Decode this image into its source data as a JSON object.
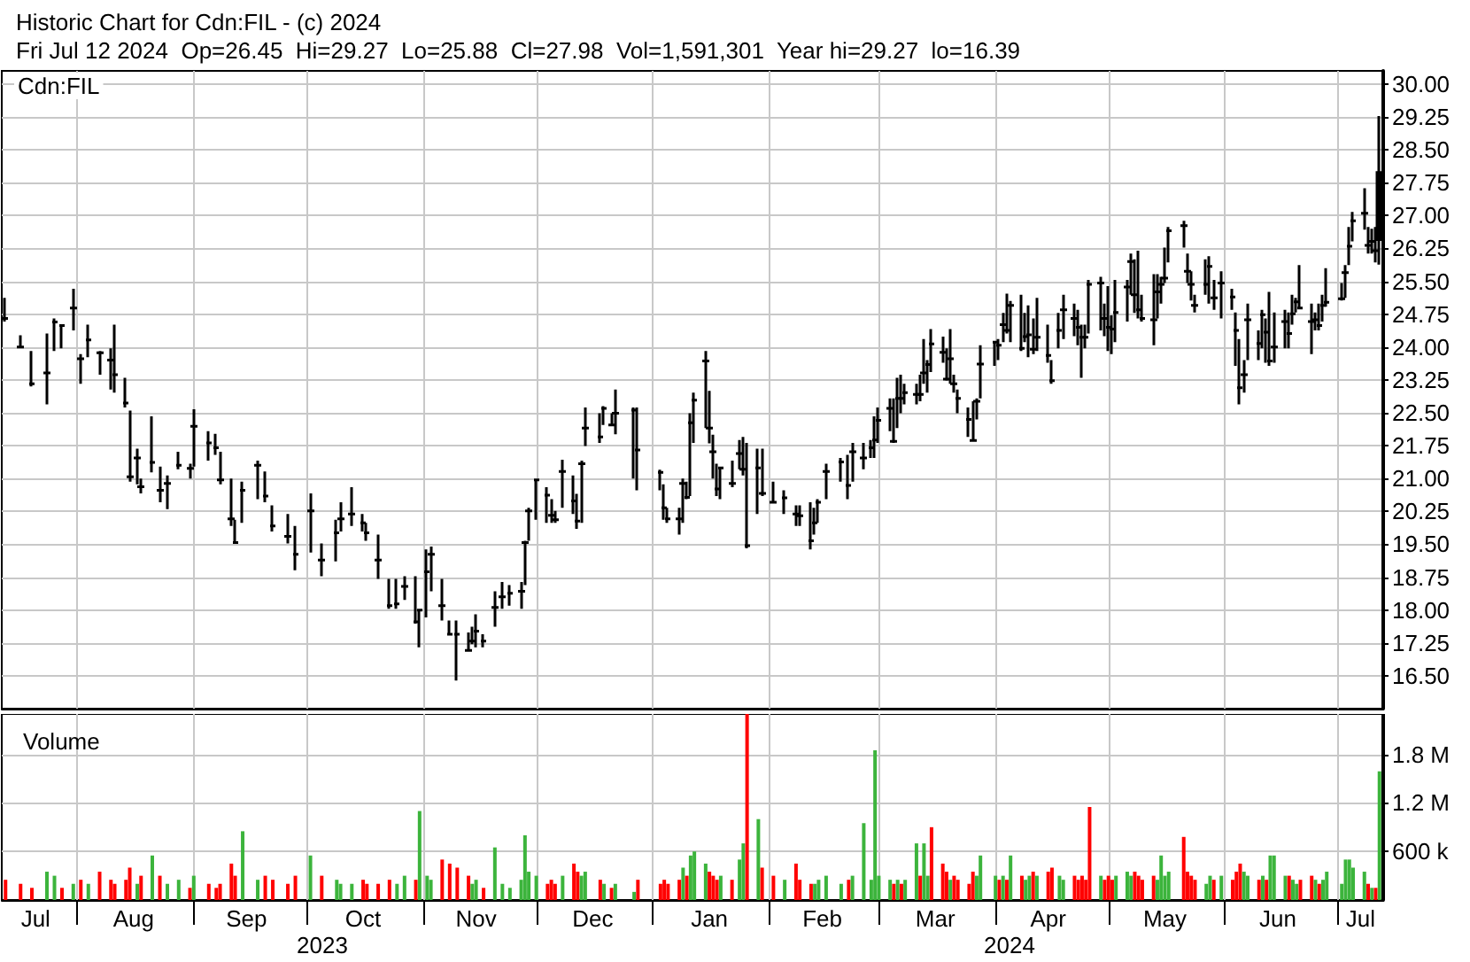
{
  "chart_data": [
    {
      "type": "candlestick",
      "title": "Historic Chart for Cdn:FIL - (c) 2024",
      "subtitle": "Fri Jul 12 2024  Op=26.45  Hi=29.27  Lo=25.88  Cl=27.98  Vol=1,591,301  Year hi=29.27  lo=16.39",
      "annotations": [
        "Cdn:FIL"
      ],
      "color": "#000000",
      "x": [
        "2023-07-13",
        "2023-07-17",
        "2023-07-20",
        "2023-07-24",
        "2023-07-26",
        "2023-07-28",
        "2023-07-31",
        "2023-08-02",
        "2023-08-04",
        "2023-08-07",
        "2023-08-10",
        "2023-08-11",
        "2023-08-14",
        "2023-08-15",
        "2023-08-17",
        "2023-08-18",
        "2023-08-21",
        "2023-08-23",
        "2023-08-25",
        "2023-08-28",
        "2023-08-31",
        "2023-09-01",
        "2023-09-05",
        "2023-09-07",
        "2023-09-08",
        "2023-09-11",
        "2023-09-12",
        "2023-09-14",
        "2023-09-18",
        "2023-09-20",
        "2023-09-22",
        "2023-09-26",
        "2023-09-28",
        "2023-10-02",
        "2023-10-05",
        "2023-10-09",
        "2023-10-10",
        "2023-10-13",
        "2023-10-16",
        "2023-10-17",
        "2023-10-20",
        "2023-10-23",
        "2023-10-25",
        "2023-10-27",
        "2023-10-30",
        "2023-10-31",
        "2023-11-02",
        "2023-11-03",
        "2023-11-06",
        "2023-11-08",
        "2023-11-10",
        "2023-11-13",
        "2023-11-14",
        "2023-11-15",
        "2023-11-17",
        "2023-11-20",
        "2023-11-22",
        "2023-11-24",
        "2023-11-27",
        "2023-11-28",
        "2023-11-29",
        "2023-12-01",
        "2023-12-04",
        "2023-12-05",
        "2023-12-06",
        "2023-12-08",
        "2023-12-11",
        "2023-12-12",
        "2023-12-13",
        "2023-12-14",
        "2023-12-18",
        "2023-12-19",
        "2023-12-21",
        "2023-12-22",
        "2023-12-27",
        "2023-12-28",
        "2024-01-03",
        "2024-01-04",
        "2024-01-05",
        "2024-01-08",
        "2024-01-09",
        "2024-01-10",
        "2024-01-11",
        "2024-01-12",
        "2024-01-15",
        "2024-01-16",
        "2024-01-17",
        "2024-01-18",
        "2024-01-19",
        "2024-01-22",
        "2024-01-24",
        "2024-01-25",
        "2024-01-26",
        "2024-01-29",
        "2024-01-30",
        "2024-02-02",
        "2024-02-05",
        "2024-02-08",
        "2024-02-09",
        "2024-02-12",
        "2024-02-13",
        "2024-02-14",
        "2024-02-16",
        "2024-02-20",
        "2024-02-22",
        "2024-02-23",
        "2024-02-26",
        "2024-02-28",
        "2024-02-29",
        "2024-03-01",
        "2024-03-04",
        "2024-03-05",
        "2024-03-06",
        "2024-03-07",
        "2024-03-08",
        "2024-03-11",
        "2024-03-12",
        "2024-03-13",
        "2024-03-14",
        "2024-03-15",
        "2024-03-18",
        "2024-03-19",
        "2024-03-20",
        "2024-03-21",
        "2024-03-22",
        "2024-03-25",
        "2024-03-26",
        "2024-03-27",
        "2024-03-28",
        "2024-04-01",
        "2024-04-02",
        "2024-04-03",
        "2024-04-04",
        "2024-04-05",
        "2024-04-08",
        "2024-04-09",
        "2024-04-10",
        "2024-04-11",
        "2024-04-12",
        "2024-04-15",
        "2024-04-16",
        "2024-04-18",
        "2024-04-19",
        "2024-04-22",
        "2024-04-23",
        "2024-04-24",
        "2024-04-25",
        "2024-04-26",
        "2024-04-29",
        "2024-04-30",
        "2024-05-01",
        "2024-05-02",
        "2024-05-03",
        "2024-05-06",
        "2024-05-07",
        "2024-05-08",
        "2024-05-09",
        "2024-05-10",
        "2024-05-13",
        "2024-05-14",
        "2024-05-15",
        "2024-05-16",
        "2024-05-17",
        "2024-05-21",
        "2024-05-22",
        "2024-05-23",
        "2024-05-24",
        "2024-05-27",
        "2024-05-28",
        "2024-05-29",
        "2024-05-31",
        "2024-06-03",
        "2024-06-04",
        "2024-06-05",
        "2024-06-06",
        "2024-06-07",
        "2024-06-10",
        "2024-06-11",
        "2024-06-12",
        "2024-06-13",
        "2024-06-14",
        "2024-06-17",
        "2024-06-18",
        "2024-06-19",
        "2024-06-20",
        "2024-06-21",
        "2024-06-24",
        "2024-06-25",
        "2024-06-26",
        "2024-06-27",
        "2024-06-28",
        "2024-07-02",
        "2024-07-03",
        "2024-07-04",
        "2024-07-05",
        "2024-07-08",
        "2024-07-09",
        "2024-07-10",
        "2024-07-11",
        "2024-07-12"
      ],
      "ohlc": [
        [
          24.65,
          25.12,
          24.58,
          24.65
        ],
        [
          24.0,
          24.27,
          23.97,
          24.0
        ],
        [
          23.16,
          23.91,
          23.1,
          23.16
        ],
        [
          23.41,
          24.31,
          22.69,
          23.41
        ],
        [
          24.57,
          24.65,
          23.91,
          24.57
        ],
        [
          24.49,
          24.51,
          23.97,
          24.49
        ],
        [
          24.89,
          25.33,
          24.38,
          24.89
        ],
        [
          23.73,
          23.84,
          23.16,
          23.73
        ],
        [
          24.16,
          24.51,
          23.77,
          24.16
        ],
        [
          23.87,
          23.91,
          23.37,
          23.87
        ],
        [
          23.7,
          23.97,
          23.03,
          23.7
        ],
        [
          23.37,
          24.51,
          22.96,
          23.37
        ],
        [
          22.72,
          23.3,
          22.62,
          22.72
        ],
        [
          21.04,
          22.55,
          20.93,
          21.04
        ],
        [
          21.47,
          21.68,
          20.87,
          21.47
        ],
        [
          20.81,
          21.0,
          20.66,
          20.81
        ],
        [
          21.37,
          22.42,
          21.14,
          21.37
        ],
        [
          20.73,
          21.27,
          20.46,
          20.73
        ],
        [
          20.89,
          21.07,
          20.3,
          20.89
        ],
        [
          21.3,
          21.61,
          21.21,
          21.3
        ],
        [
          21.23,
          21.34,
          21.0,
          21.23
        ],
        [
          22.19,
          22.58,
          21.27,
          22.19
        ],
        [
          21.81,
          22.08,
          21.41,
          21.81
        ],
        [
          21.7,
          22.02,
          21.54,
          21.7
        ],
        [
          20.97,
          21.61,
          20.87,
          20.97
        ],
        [
          20.08,
          21.0,
          19.92,
          20.08
        ],
        [
          19.54,
          20.06,
          19.52,
          19.54
        ],
        [
          20.73,
          20.93,
          19.99,
          20.73
        ],
        [
          21.3,
          21.41,
          20.53,
          21.3
        ],
        [
          20.6,
          21.16,
          20.46,
          20.6
        ],
        [
          19.92,
          20.39,
          19.79,
          19.92
        ],
        [
          19.68,
          20.19,
          19.52,
          19.68
        ],
        [
          19.27,
          19.92,
          18.91,
          19.27
        ],
        [
          20.26,
          20.66,
          19.31,
          20.26
        ],
        [
          19.14,
          19.52,
          18.77,
          19.14
        ],
        [
          19.76,
          20.06,
          19.11,
          19.76
        ],
        [
          20.08,
          20.46,
          19.79,
          20.08
        ],
        [
          20.19,
          20.8,
          19.92,
          20.19
        ],
        [
          19.99,
          20.19,
          19.79,
          19.99
        ],
        [
          19.76,
          19.99,
          19.58,
          19.76
        ],
        [
          19.14,
          19.72,
          18.71,
          19.14
        ],
        [
          18.1,
          18.71,
          18.03,
          18.1
        ],
        [
          18.14,
          18.71,
          18.03,
          18.14
        ],
        [
          18.54,
          18.77,
          18.23,
          18.54
        ],
        [
          17.73,
          18.77,
          17.69,
          17.73
        ],
        [
          18.0,
          18.03,
          17.15,
          18.0
        ],
        [
          18.87,
          19.38,
          17.83,
          18.87
        ],
        [
          19.27,
          19.45,
          18.43,
          19.27
        ],
        [
          18.1,
          18.71,
          17.76,
          18.1
        ],
        [
          17.45,
          17.76,
          17.42,
          17.45
        ],
        [
          17.45,
          17.76,
          16.39,
          17.45
        ],
        [
          17.08,
          17.49,
          17.08,
          17.08
        ],
        [
          17.29,
          17.62,
          17.22,
          17.29
        ],
        [
          17.52,
          17.9,
          17.15,
          17.52
        ],
        [
          17.29,
          17.45,
          17.15,
          17.29
        ],
        [
          18.06,
          18.43,
          17.62,
          18.06
        ],
        [
          18.3,
          18.64,
          18.03,
          18.3
        ],
        [
          18.38,
          18.57,
          18.1,
          18.38
        ],
        [
          18.43,
          18.64,
          18.03,
          18.43
        ],
        [
          19.54,
          19.58,
          18.57,
          19.54
        ],
        [
          20.26,
          20.33,
          19.58,
          20.26
        ],
        [
          20.97,
          20.97,
          20.06,
          20.97
        ],
        [
          20.62,
          20.8,
          19.99,
          20.62
        ],
        [
          20.16,
          20.53,
          19.99,
          20.16
        ],
        [
          20.06,
          20.26,
          19.99,
          20.06
        ],
        [
          21.16,
          21.43,
          20.33,
          21.16
        ],
        [
          20.49,
          21.07,
          20.19,
          20.49
        ],
        [
          20.03,
          20.65,
          19.85,
          20.03
        ],
        [
          21.34,
          21.41,
          19.99,
          21.34
        ],
        [
          22.15,
          22.62,
          21.74,
          22.15
        ],
        [
          21.95,
          22.49,
          21.81,
          21.95
        ],
        [
          22.6,
          22.65,
          22.22,
          22.6
        ],
        [
          22.22,
          22.49,
          22.22,
          22.22
        ],
        [
          22.49,
          23.03,
          22.01,
          22.49
        ],
        [
          22.56,
          22.62,
          21.0,
          22.56
        ],
        [
          21.65,
          22.62,
          20.73,
          21.65
        ],
        [
          21.14,
          21.2,
          20.73,
          21.14
        ],
        [
          20.33,
          20.87,
          20.06,
          20.33
        ],
        [
          20.08,
          20.33,
          19.99,
          20.08
        ],
        [
          20.08,
          20.33,
          19.72,
          20.08
        ],
        [
          20.89,
          21.0,
          19.99,
          20.89
        ],
        [
          20.57,
          20.93,
          20.53,
          20.57
        ],
        [
          22.27,
          22.49,
          20.6,
          22.27
        ],
        [
          22.79,
          22.96,
          21.81,
          22.79
        ],
        [
          23.68,
          23.91,
          22.15,
          23.68
        ],
        [
          22.15,
          23.0,
          21.8,
          22.15
        ],
        [
          21.61,
          22.0,
          21.0,
          21.61
        ],
        [
          20.76,
          21.34,
          20.6,
          20.76
        ],
        [
          21.24,
          21.27,
          20.53,
          21.24
        ],
        [
          20.89,
          21.41,
          20.8,
          20.89
        ],
        [
          21.57,
          21.88,
          21.21,
          21.57
        ],
        [
          21.21,
          21.95,
          21.07,
          21.21
        ],
        [
          19.47,
          21.81,
          19.41,
          19.47
        ],
        [
          21.24,
          21.68,
          20.19,
          21.24
        ],
        [
          20.66,
          21.68,
          20.6,
          20.66
        ],
        [
          20.46,
          20.93,
          20.46,
          20.46
        ],
        [
          20.56,
          20.73,
          20.19,
          20.56
        ],
        [
          20.19,
          20.39,
          19.92,
          20.19
        ],
        [
          20.15,
          20.39,
          19.92,
          20.15
        ],
        [
          19.58,
          20.46,
          19.38,
          19.58
        ],
        [
          19.99,
          20.33,
          19.72,
          19.99
        ],
        [
          20.46,
          20.53,
          19.99,
          20.46
        ],
        [
          21.16,
          21.34,
          20.53,
          21.16
        ],
        [
          21.38,
          21.47,
          20.93,
          21.38
        ],
        [
          20.84,
          21.54,
          20.53,
          20.84
        ],
        [
          21.61,
          21.81,
          20.93,
          21.61
        ],
        [
          21.47,
          21.81,
          21.21,
          21.47
        ],
        [
          21.7,
          21.88,
          21.47,
          21.7
        ],
        [
          21.88,
          22.42,
          21.47,
          21.88
        ],
        [
          22.33,
          22.62,
          21.81,
          22.33
        ],
        [
          22.6,
          22.83,
          22.08,
          22.6
        ],
        [
          21.85,
          22.83,
          21.81,
          21.85
        ],
        [
          22.83,
          23.3,
          22.15,
          22.83
        ],
        [
          22.83,
          23.37,
          22.49,
          22.83
        ],
        [
          22.96,
          23.16,
          22.69,
          22.96
        ],
        [
          22.92,
          23.16,
          22.69,
          22.92
        ],
        [
          22.92,
          23.37,
          22.76,
          22.92
        ],
        [
          23.41,
          24.18,
          23.16,
          23.41
        ],
        [
          23.6,
          23.7,
          22.96,
          23.6
        ],
        [
          24.07,
          24.41,
          23.43,
          24.07
        ],
        [
          23.88,
          24.24,
          23.64,
          23.88
        ],
        [
          23.27,
          23.97,
          23.23,
          23.27
        ],
        [
          23.73,
          24.41,
          23.16,
          23.73
        ],
        [
          23.16,
          23.37,
          22.96,
          23.16
        ],
        [
          22.83,
          23.03,
          22.49,
          22.83
        ],
        [
          22.35,
          22.62,
          21.95,
          22.35
        ],
        [
          21.87,
          22.76,
          21.84,
          21.87
        ],
        [
          22.76,
          22.83,
          22.35,
          22.76
        ],
        [
          23.61,
          24.04,
          22.83,
          23.61
        ],
        [
          24.11,
          24.14,
          23.57,
          24.11
        ],
        [
          24.04,
          24.18,
          23.7,
          24.04
        ],
        [
          24.51,
          24.78,
          24.11,
          24.51
        ],
        [
          24.38,
          25.22,
          24.31,
          24.38
        ],
        [
          24.95,
          25.05,
          24.11,
          24.95
        ],
        [
          23.97,
          25.19,
          23.91,
          23.97
        ],
        [
          24.24,
          24.78,
          24.11,
          24.24
        ],
        [
          24.28,
          24.95,
          23.77,
          24.28
        ],
        [
          23.95,
          24.65,
          23.84,
          23.95
        ],
        [
          24.22,
          25.12,
          23.91,
          24.22
        ],
        [
          23.81,
          24.51,
          23.64,
          23.81
        ],
        [
          23.23,
          23.7,
          23.16,
          23.23
        ],
        [
          24.38,
          24.78,
          23.97,
          24.38
        ],
        [
          24.85,
          25.19,
          24.18,
          24.85
        ],
        [
          24.65,
          24.99,
          24.25,
          24.65
        ],
        [
          24.45,
          24.85,
          24.04,
          24.45
        ],
        [
          24.22,
          24.51,
          23.3,
          24.22
        ],
        [
          24.22,
          24.51,
          23.97,
          24.22
        ],
        [
          25.43,
          25.53,
          24.31,
          25.43
        ],
        [
          25.46,
          25.6,
          24.38,
          25.46
        ],
        [
          24.65,
          24.99,
          24.25,
          24.65
        ],
        [
          24.45,
          25.39,
          23.91,
          24.45
        ],
        [
          24.41,
          24.72,
          23.84,
          24.41
        ],
        [
          24.79,
          25.53,
          24.11,
          24.79
        ],
        [
          25.37,
          25.53,
          24.58,
          25.37
        ],
        [
          25.95,
          26.13,
          25.19,
          25.95
        ],
        [
          25.19,
          26.0,
          24.78,
          25.19
        ],
        [
          24.85,
          26.2,
          24.65,
          24.85
        ],
        [
          24.65,
          25.19,
          24.58,
          24.65
        ],
        [
          24.62,
          25.66,
          24.04,
          24.62
        ],
        [
          25.26,
          25.66,
          24.65,
          25.26
        ],
        [
          25.43,
          25.6,
          24.99,
          25.43
        ],
        [
          25.57,
          26.27,
          25.46,
          25.57
        ],
        [
          26.65,
          26.74,
          25.93,
          26.65
        ],
        [
          26.77,
          26.88,
          26.27,
          26.77
        ],
        [
          25.73,
          26.13,
          25.46,
          25.73
        ],
        [
          25.43,
          25.73,
          25.06,
          25.43
        ],
        [
          24.95,
          25.19,
          24.79,
          24.95
        ],
        [
          25.43,
          26.0,
          25.19,
          25.43
        ],
        [
          25.84,
          26.07,
          24.99,
          25.84
        ],
        [
          25.12,
          25.53,
          24.85,
          25.12
        ],
        [
          25.46,
          25.73,
          24.65,
          25.46
        ],
        [
          25.14,
          25.33,
          24.85,
          25.14
        ],
        [
          24.38,
          24.79,
          23.57,
          24.38
        ],
        [
          23.07,
          24.18,
          22.69,
          23.07
        ],
        [
          23.37,
          23.7,
          22.96,
          23.37
        ],
        [
          24.62,
          24.99,
          23.7,
          24.62
        ],
        [
          24.08,
          24.38,
          23.7,
          24.08
        ],
        [
          24.74,
          24.85,
          23.97,
          24.74
        ],
        [
          24.34,
          24.65,
          23.64,
          24.34
        ],
        [
          23.68,
          25.26,
          23.57,
          23.68
        ],
        [
          24.0,
          24.79,
          23.64,
          24.0
        ],
        [
          24.58,
          24.85,
          23.97,
          24.58
        ],
        [
          24.31,
          24.79,
          23.97,
          24.31
        ],
        [
          24.76,
          25.19,
          24.51,
          24.76
        ],
        [
          25.03,
          25.12,
          24.79,
          25.03
        ],
        [
          24.89,
          25.87,
          24.89,
          24.89
        ],
        [
          24.58,
          24.99,
          23.84,
          24.58
        ],
        [
          24.62,
          24.79,
          24.38,
          24.62
        ],
        [
          24.49,
          24.99,
          24.38,
          24.49
        ],
        [
          24.95,
          25.19,
          24.58,
          24.95
        ],
        [
          25.02,
          25.8,
          24.92,
          25.02
        ],
        [
          25.1,
          25.46,
          25.06,
          25.1
        ],
        [
          25.7,
          25.87,
          25.12,
          25.7
        ],
        [
          26.3,
          26.74,
          25.87,
          26.3
        ],
        [
          26.88,
          27.08,
          26.41,
          26.88
        ],
        [
          27.05,
          27.62,
          26.68,
          27.05
        ],
        [
          26.32,
          26.74,
          26.13,
          26.32
        ],
        [
          26.41,
          26.7,
          26.13,
          26.41
        ],
        [
          26.2,
          26.74,
          25.93,
          26.2
        ],
        [
          26.45,
          29.27,
          25.88,
          27.98
        ]
      ],
      "xlim": [
        "2023-07-12",
        "2024-07-13"
      ],
      "xticks": [
        {
          "value": "2023-08-01",
          "label": null
        },
        {
          "value": "2023-09-01",
          "label": null
        },
        {
          "value": "2023-10-01",
          "label": null
        },
        {
          "value": "2023-11-01",
          "label": null
        },
        {
          "value": "2023-12-01",
          "label": null
        },
        {
          "value": "2024-01-01",
          "label": null
        },
        {
          "value": "2024-02-01",
          "label": null
        },
        {
          "value": "2024-03-01",
          "label": null
        },
        {
          "value": "2024-04-01",
          "label": null
        },
        {
          "value": "2024-05-01",
          "label": null
        },
        {
          "value": "2024-06-01",
          "label": null
        },
        {
          "value": "2024-07-01",
          "label": null
        }
      ],
      "ylim": [
        15.75,
        30.3
      ],
      "yticks": [
        {
          "value": 16.5,
          "label": "16.50"
        },
        {
          "value": 17.25,
          "label": "17.25"
        },
        {
          "value": 18,
          "label": "18.00"
        },
        {
          "value": 18.75,
          "label": "18.75"
        },
        {
          "value": 19.5,
          "label": "19.50"
        },
        {
          "value": 20.25,
          "label": "20.25"
        },
        {
          "value": 21,
          "label": "21.00"
        },
        {
          "value": 21.75,
          "label": "21.75"
        },
        {
          "value": 22.5,
          "label": "22.50"
        },
        {
          "value": 23.25,
          "label": "23.25"
        },
        {
          "value": 24,
          "label": "24.00"
        },
        {
          "value": 24.75,
          "label": "24.75"
        },
        {
          "value": 25.5,
          "label": "25.50"
        },
        {
          "value": 26.25,
          "label": "26.25"
        },
        {
          "value": 27,
          "label": "27.00"
        },
        {
          "value": 27.75,
          "label": "27.75"
        },
        {
          "value": 28.5,
          "label": "28.50"
        },
        {
          "value": 29.25,
          "label": "29.25"
        },
        {
          "value": 30,
          "label": "30.00"
        }
      ],
      "grid": true,
      "tick_labels": "y"
    },
    {
      "type": "bar",
      "title": "Volume",
      "x": [
        "2023-07-13",
        "2023-07-17",
        "2023-07-20",
        "2023-07-24",
        "2023-07-26",
        "2023-07-28",
        "2023-07-31",
        "2023-08-02",
        "2023-08-04",
        "2023-08-07",
        "2023-08-10",
        "2023-08-11",
        "2023-08-14",
        "2023-08-15",
        "2023-08-17",
        "2023-08-18",
        "2023-08-21",
        "2023-08-23",
        "2023-08-25",
        "2023-08-28",
        "2023-08-31",
        "2023-09-01",
        "2023-09-05",
        "2023-09-07",
        "2023-09-08",
        "2023-09-11",
        "2023-09-12",
        "2023-09-14",
        "2023-09-18",
        "2023-09-20",
        "2023-09-22",
        "2023-09-26",
        "2023-09-28",
        "2023-10-02",
        "2023-10-05",
        "2023-10-09",
        "2023-10-10",
        "2023-10-13",
        "2023-10-16",
        "2023-10-17",
        "2023-10-20",
        "2023-10-23",
        "2023-10-25",
        "2023-10-27",
        "2023-10-30",
        "2023-10-31",
        "2023-11-02",
        "2023-11-03",
        "2023-11-06",
        "2023-11-08",
        "2023-11-10",
        "2023-11-13",
        "2023-11-14",
        "2023-11-15",
        "2023-11-17",
        "2023-11-20",
        "2023-11-22",
        "2023-11-24",
        "2023-11-27",
        "2023-11-28",
        "2023-11-29",
        "2023-12-01",
        "2023-12-04",
        "2023-12-05",
        "2023-12-06",
        "2023-12-08",
        "2023-12-11",
        "2023-12-12",
        "2023-12-13",
        "2023-12-14",
        "2023-12-18",
        "2023-12-19",
        "2023-12-21",
        "2023-12-22",
        "2023-12-27",
        "2023-12-28",
        "2024-01-03",
        "2024-01-04",
        "2024-01-05",
        "2024-01-08",
        "2024-01-09",
        "2024-01-10",
        "2024-01-11",
        "2024-01-12",
        "2024-01-15",
        "2024-01-16",
        "2024-01-17",
        "2024-01-18",
        "2024-01-19",
        "2024-01-22",
        "2024-01-24",
        "2024-01-25",
        "2024-01-26",
        "2024-01-29",
        "2024-01-30",
        "2024-02-02",
        "2024-02-05",
        "2024-02-08",
        "2024-02-09",
        "2024-02-12",
        "2024-02-13",
        "2024-02-14",
        "2024-02-16",
        "2024-02-20",
        "2024-02-22",
        "2024-02-23",
        "2024-02-26",
        "2024-02-28",
        "2024-02-29",
        "2024-03-01",
        "2024-03-04",
        "2024-03-05",
        "2024-03-06",
        "2024-03-07",
        "2024-03-08",
        "2024-03-11",
        "2024-03-12",
        "2024-03-13",
        "2024-03-14",
        "2024-03-15",
        "2024-03-18",
        "2024-03-19",
        "2024-03-20",
        "2024-03-21",
        "2024-03-22",
        "2024-03-25",
        "2024-03-26",
        "2024-03-27",
        "2024-03-28",
        "2024-04-01",
        "2024-04-02",
        "2024-04-03",
        "2024-04-04",
        "2024-04-05",
        "2024-04-08",
        "2024-04-09",
        "2024-04-10",
        "2024-04-11",
        "2024-04-12",
        "2024-04-15",
        "2024-04-16",
        "2024-04-18",
        "2024-04-19",
        "2024-04-22",
        "2024-04-23",
        "2024-04-24",
        "2024-04-25",
        "2024-04-26",
        "2024-04-29",
        "2024-04-30",
        "2024-05-01",
        "2024-05-02",
        "2024-05-03",
        "2024-05-06",
        "2024-05-07",
        "2024-05-08",
        "2024-05-09",
        "2024-05-10",
        "2024-05-13",
        "2024-05-14",
        "2024-05-15",
        "2024-05-16",
        "2024-05-17",
        "2024-05-21",
        "2024-05-22",
        "2024-05-23",
        "2024-05-24",
        "2024-05-27",
        "2024-05-28",
        "2024-05-29",
        "2024-05-31",
        "2024-06-03",
        "2024-06-04",
        "2024-06-05",
        "2024-06-06",
        "2024-06-07",
        "2024-06-10",
        "2024-06-11",
        "2024-06-12",
        "2024-06-13",
        "2024-06-14",
        "2024-06-17",
        "2024-06-18",
        "2024-06-19",
        "2024-06-20",
        "2024-06-21",
        "2024-06-24",
        "2024-06-25",
        "2024-06-26",
        "2024-06-27",
        "2024-06-28",
        "2024-07-02",
        "2024-07-03",
        "2024-07-04",
        "2024-07-05",
        "2024-07-08",
        "2024-07-09",
        "2024-07-10",
        "2024-07-11",
        "2024-07-12"
      ],
      "values": [
        250000,
        200000,
        150000,
        350000,
        300000,
        150000,
        200000,
        250000,
        200000,
        350000,
        250000,
        200000,
        250000,
        400000,
        200000,
        300000,
        550000,
        300000,
        200000,
        250000,
        150000,
        300000,
        200000,
        150000,
        200000,
        450000,
        300000,
        850000,
        250000,
        300000,
        250000,
        200000,
        300000,
        550000,
        300000,
        250000,
        200000,
        200000,
        250000,
        200000,
        200000,
        250000,
        200000,
        300000,
        250000,
        1100000,
        300000,
        250000,
        500000,
        450000,
        400000,
        300000,
        200000,
        250000,
        150000,
        650000,
        200000,
        150000,
        250000,
        800000,
        350000,
        300000,
        200000,
        250000,
        200000,
        300000,
        450000,
        350000,
        300000,
        350000,
        250000,
        200000,
        150000,
        200000,
        100000,
        250000,
        200000,
        250000,
        200000,
        250000,
        400000,
        300000,
        550000,
        600000,
        450000,
        350000,
        300000,
        250000,
        300000,
        250000,
        500000,
        700000,
        2300000,
        1000000,
        400000,
        300000,
        250000,
        450000,
        250000,
        200000,
        200000,
        250000,
        300000,
        200000,
        250000,
        300000,
        950000,
        250000,
        1850000,
        300000,
        250000,
        200000,
        250000,
        200000,
        250000,
        700000,
        300000,
        700000,
        300000,
        900000,
        450000,
        350000,
        250000,
        300000,
        250000,
        200000,
        350000,
        300000,
        550000,
        300000,
        250000,
        300000,
        250000,
        550000,
        300000,
        250000,
        300000,
        350000,
        300000,
        350000,
        400000,
        300000,
        250000,
        300000,
        250000,
        300000,
        250000,
        1150000,
        300000,
        250000,
        300000,
        250000,
        300000,
        350000,
        300000,
        350000,
        300000,
        250000,
        300000,
        250000,
        550000,
        300000,
        350000,
        780000,
        350000,
        300000,
        250000,
        200000,
        300000,
        250000,
        300000,
        250000,
        350000,
        450000,
        350000,
        300000,
        250000,
        300000,
        250000,
        550000,
        550000,
        300000,
        300000,
        250000,
        200000,
        250000,
        300000,
        250000,
        200000,
        250000,
        350000,
        200000,
        500000,
        500000,
        400000,
        350000,
        200000,
        150000,
        150000,
        1591301
      ],
      "colors": [
        "#ff0000",
        "#ff0000",
        "#ff0000",
        "#3cb43c",
        "#3cb43c",
        "#ff0000",
        "#3cb43c",
        "#ff0000",
        "#3cb43c",
        "#ff0000",
        "#ff0000",
        "#ff0000",
        "#ff0000",
        "#ff0000",
        "#3cb43c",
        "#ff0000",
        "#3cb43c",
        "#ff0000",
        "#3cb43c",
        "#3cb43c",
        "#ff0000",
        "#3cb43c",
        "#ff0000",
        "#ff0000",
        "#ff0000",
        "#ff0000",
        "#ff0000",
        "#3cb43c",
        "#3cb43c",
        "#ff0000",
        "#ff0000",
        "#ff0000",
        "#ff0000",
        "#3cb43c",
        "#ff0000",
        "#3cb43c",
        "#3cb43c",
        "#3cb43c",
        "#ff0000",
        "#ff0000",
        "#ff0000",
        "#ff0000",
        "#3cb43c",
        "#3cb43c",
        "#ff0000",
        "#3cb43c",
        "#3cb43c",
        "#3cb43c",
        "#ff0000",
        "#ff0000",
        "#ff0000",
        "#ff0000",
        "#3cb43c",
        "#3cb43c",
        "#ff0000",
        "#3cb43c",
        "#3cb43c",
        "#3cb43c",
        "#3cb43c",
        "#3cb43c",
        "#3cb43c",
        "#3cb43c",
        "#ff0000",
        "#ff0000",
        "#ff0000",
        "#3cb43c",
        "#ff0000",
        "#ff0000",
        "#3cb43c",
        "#3cb43c",
        "#ff0000",
        "#3cb43c",
        "#ff0000",
        "#3cb43c",
        "#3cb43c",
        "#ff0000",
        "#ff0000",
        "#ff0000",
        "#ff0000",
        "#ff0000",
        "#3cb43c",
        "#ff0000",
        "#3cb43c",
        "#3cb43c",
        "#3cb43c",
        "#ff0000",
        "#ff0000",
        "#ff0000",
        "#3cb43c",
        "#ff0000",
        "#3cb43c",
        "#3cb43c",
        "#ff0000",
        "#3cb43c",
        "#ff0000",
        "#ff0000",
        "#3cb43c",
        "#ff0000",
        "#ff0000",
        "#ff0000",
        "#3cb43c",
        "#3cb43c",
        "#3cb43c",
        "#3cb43c",
        "#ff0000",
        "#3cb43c",
        "#3cb43c",
        "#3cb43c",
        "#3cb43c",
        "#3cb43c",
        "#3cb43c",
        "#ff0000",
        "#3cb43c",
        "#ff0000",
        "#3cb43c",
        "#3cb43c",
        "#ff0000",
        "#3cb43c",
        "#3cb43c",
        "#ff0000",
        "#ff0000",
        "#ff0000",
        "#3cb43c",
        "#ff0000",
        "#ff0000",
        "#ff0000",
        "#ff0000",
        "#3cb43c",
        "#3cb43c",
        "#3cb43c",
        "#ff0000",
        "#3cb43c",
        "#ff0000",
        "#3cb43c",
        "#ff0000",
        "#3cb43c",
        "#3cb43c",
        "#ff0000",
        "#3cb43c",
        "#ff0000",
        "#ff0000",
        "#3cb43c",
        "#3cb43c",
        "#ff0000",
        "#ff0000",
        "#ff0000",
        "#ff0000",
        "#ff0000",
        "#3cb43c",
        "#ff0000",
        "#ff0000",
        "#ff0000",
        "#3cb43c",
        "#3cb43c",
        "#3cb43c",
        "#ff0000",
        "#ff0000",
        "#ff0000",
        "#ff0000",
        "#3cb43c",
        "#3cb43c",
        "#3cb43c",
        "#3cb43c",
        "#ff0000",
        "#ff0000",
        "#ff0000",
        "#ff0000",
        "#3cb43c",
        "#3cb43c",
        "#ff0000",
        "#3cb43c",
        "#ff0000",
        "#ff0000",
        "#ff0000",
        "#3cb43c",
        "#3cb43c",
        "#ff0000",
        "#3cb43c",
        "#ff0000",
        "#3cb43c",
        "#3cb43c",
        "#3cb43c",
        "#ff0000",
        "#3cb43c",
        "#3cb43c",
        "#ff0000",
        "#ff0000",
        "#3cb43c",
        "#ff0000",
        "#3cb43c",
        "#3cb43c",
        "#3cb43c",
        "#3cb43c",
        "#3cb43c",
        "#3cb43c",
        "#3cb43c",
        "#ff0000",
        "#3cb43c",
        "#ff0000",
        "#3cb43c"
      ],
      "xlim": [
        "2023-07-12",
        "2024-07-13"
      ],
      "xticks": [
        {
          "value": "2023-07-21",
          "label": "Jul"
        },
        {
          "value": "2023-08-01",
          "label": null
        },
        {
          "value": "2023-08-16",
          "label": "Aug"
        },
        {
          "value": "2023-09-01",
          "label": null
        },
        {
          "value": "2023-09-15",
          "label": "Sep"
        },
        {
          "value": "2023-10-01",
          "label": null
        },
        {
          "value": "2023-10-16",
          "label": "Oct"
        },
        {
          "value": "2023-11-01",
          "label": null
        },
        {
          "value": "2023-11-15",
          "label": "Nov"
        },
        {
          "value": "2023-12-01",
          "label": null
        },
        {
          "value": "2023-12-16",
          "label": "Dec"
        },
        {
          "value": "2024-01-01",
          "label": null
        },
        {
          "value": "2024-01-16",
          "label": "Jan"
        },
        {
          "value": "2024-02-01",
          "label": null
        },
        {
          "value": "2024-02-15",
          "label": "Feb"
        },
        {
          "value": "2024-03-01",
          "label": null
        },
        {
          "value": "2024-03-16",
          "label": "Mar"
        },
        {
          "value": "2024-04-01",
          "label": null
        },
        {
          "value": "2024-04-15",
          "label": "Apr"
        },
        {
          "value": "2024-05-01",
          "label": null
        },
        {
          "value": "2024-05-16",
          "label": "May"
        },
        {
          "value": "2024-06-01",
          "label": null
        },
        {
          "value": "2024-06-15",
          "label": "Jun"
        },
        {
          "value": "2024-07-01",
          "label": null
        },
        {
          "value": "2024-07-07",
          "label": "Jul"
        }
      ],
      "annotations": [
        "2023",
        "2024"
      ],
      "ylim": [
        0,
        2300000
      ],
      "yticks": [
        {
          "value": 600000,
          "label": "600 k"
        },
        {
          "value": 1200000,
          "label": "1.2 M"
        },
        {
          "value": 1800000,
          "label": "1.8 M"
        }
      ],
      "grid": true
    }
  ]
}
